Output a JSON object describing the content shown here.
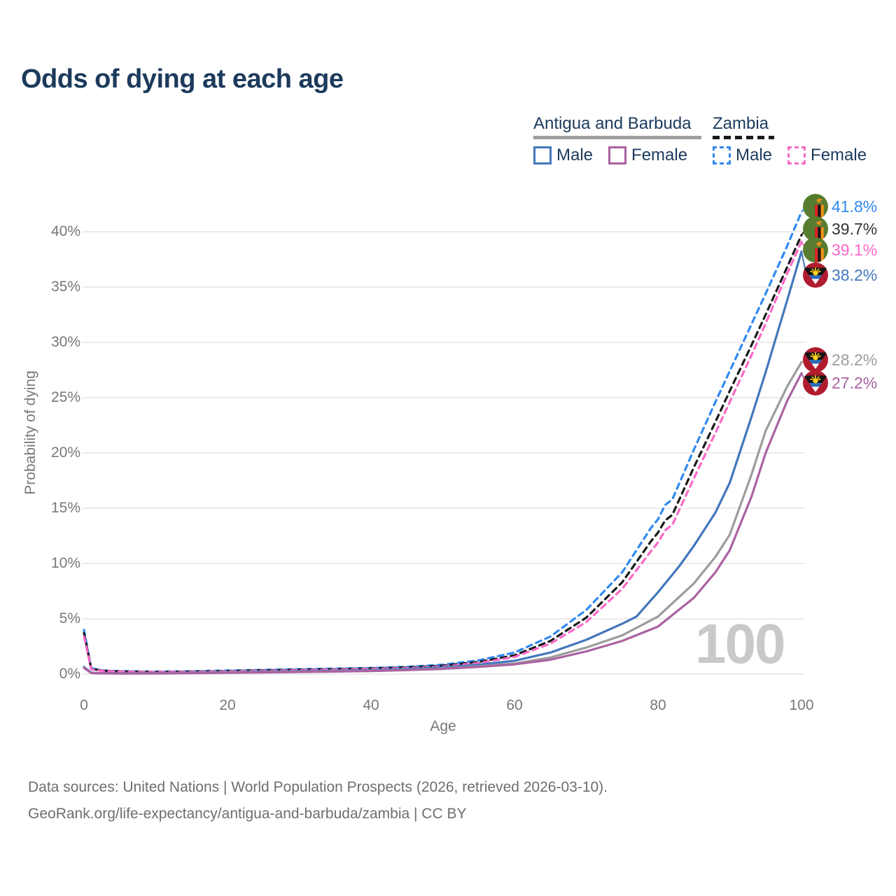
{
  "title": "Odds of dying at each age",
  "legend": {
    "groups": [
      {
        "label": "Antigua and Barbuda",
        "line_style": "solid",
        "underline_color": "#9e9e9e",
        "items": [
          {
            "label": "Male",
            "color": "#4377bc"
          },
          {
            "label": "Female",
            "color": "#aa62a2"
          }
        ]
      },
      {
        "label": "Zambia",
        "line_style": "dashed",
        "underline_color": "#1a1a1a",
        "items": [
          {
            "label": "Male",
            "color": "#3089f2"
          },
          {
            "label": "Female",
            "color": "#fb68c8"
          }
        ]
      }
    ]
  },
  "chart_data": {
    "type": "line",
    "title": "Odds of dying at each age",
    "x_axis": {
      "label": "Age",
      "tick_values": [
        0,
        20,
        40,
        60,
        80,
        100
      ],
      "range": [
        0,
        100
      ]
    },
    "y_axis": {
      "label": "Probability of dying",
      "tick_labels": [
        "0%",
        "5%",
        "10%",
        "15%",
        "20%",
        "25%",
        "30%",
        "35%",
        "40%"
      ],
      "tick_values": [
        0,
        5,
        10,
        15,
        20,
        25,
        30,
        35,
        40
      ],
      "range": [
        0,
        43.5
      ]
    },
    "grid": true,
    "watermark": "100",
    "series": [
      {
        "name": "Zambia Male",
        "country": "Zambia",
        "sex": "Male",
        "flag": "zambia",
        "color": "#3089f2",
        "dash": "dashed",
        "end_label": "41.8%",
        "end_value": 41.8,
        "points": [
          [
            0,
            4.0
          ],
          [
            1,
            0.55
          ],
          [
            2,
            0.4
          ],
          [
            3,
            0.32
          ],
          [
            5,
            0.27
          ],
          [
            10,
            0.22
          ],
          [
            15,
            0.26
          ],
          [
            20,
            0.32
          ],
          [
            25,
            0.38
          ],
          [
            30,
            0.44
          ],
          [
            35,
            0.5
          ],
          [
            40,
            0.56
          ],
          [
            45,
            0.66
          ],
          [
            50,
            0.85
          ],
          [
            55,
            1.25
          ],
          [
            60,
            1.95
          ],
          [
            65,
            3.4
          ],
          [
            70,
            5.8
          ],
          [
            75,
            9.2
          ],
          [
            79,
            13.2
          ],
          [
            80,
            14.0
          ],
          [
            81,
            15.3
          ],
          [
            82,
            15.8
          ],
          [
            85,
            20.3
          ],
          [
            88,
            24.6
          ],
          [
            90,
            27.4
          ],
          [
            93,
            31.6
          ],
          [
            95,
            34.4
          ],
          [
            98,
            38.7
          ],
          [
            100,
            41.8
          ]
        ]
      },
      {
        "name": "Zambia",
        "country": "Zambia",
        "sex": "Both",
        "flag": "zambia",
        "color": "#1a1a1a",
        "dash": "dashed",
        "end_label": "39.7%",
        "end_value": 39.7,
        "points": [
          [
            0,
            3.7
          ],
          [
            1,
            0.5
          ],
          [
            2,
            0.36
          ],
          [
            3,
            0.29
          ],
          [
            5,
            0.24
          ],
          [
            10,
            0.19
          ],
          [
            15,
            0.23
          ],
          [
            20,
            0.28
          ],
          [
            25,
            0.34
          ],
          [
            30,
            0.4
          ],
          [
            35,
            0.45
          ],
          [
            40,
            0.51
          ],
          [
            45,
            0.6
          ],
          [
            50,
            0.76
          ],
          [
            55,
            1.1
          ],
          [
            60,
            1.7
          ],
          [
            65,
            3.0
          ],
          [
            70,
            5.1
          ],
          [
            75,
            8.3
          ],
          [
            79,
            12.0
          ],
          [
            80,
            12.8
          ],
          [
            81,
            13.9
          ],
          [
            82,
            14.4
          ],
          [
            85,
            18.7
          ],
          [
            88,
            22.8
          ],
          [
            90,
            25.6
          ],
          [
            93,
            29.7
          ],
          [
            95,
            32.5
          ],
          [
            98,
            36.8
          ],
          [
            100,
            39.7
          ]
        ]
      },
      {
        "name": "Zambia Female",
        "country": "Zambia",
        "sex": "Female",
        "flag": "zambia",
        "color": "#fb68c8",
        "dash": "dashed",
        "end_label": "39.1%",
        "end_value": 39.1,
        "points": [
          [
            0,
            3.4
          ],
          [
            1,
            0.45
          ],
          [
            2,
            0.33
          ],
          [
            3,
            0.27
          ],
          [
            5,
            0.22
          ],
          [
            10,
            0.17
          ],
          [
            15,
            0.2
          ],
          [
            20,
            0.25
          ],
          [
            25,
            0.3
          ],
          [
            30,
            0.36
          ],
          [
            35,
            0.41
          ],
          [
            40,
            0.46
          ],
          [
            45,
            0.54
          ],
          [
            50,
            0.68
          ],
          [
            55,
            1.0
          ],
          [
            60,
            1.55
          ],
          [
            65,
            2.75
          ],
          [
            70,
            4.7
          ],
          [
            75,
            7.7
          ],
          [
            79,
            11.1
          ],
          [
            80,
            11.9
          ],
          [
            81,
            13.0
          ],
          [
            82,
            13.5
          ],
          [
            85,
            17.7
          ],
          [
            88,
            21.8
          ],
          [
            90,
            24.6
          ],
          [
            93,
            28.8
          ],
          [
            95,
            31.7
          ],
          [
            98,
            36.2
          ],
          [
            100,
            39.1
          ]
        ]
      },
      {
        "name": "Antigua and Barbuda Male",
        "country": "Antigua and Barbuda",
        "sex": "Male",
        "flag": "antigua-and-barbuda",
        "color": "#4377bc",
        "dash": "solid",
        "end_label": "38.2%",
        "end_value": 38.2,
        "points": [
          [
            0,
            0.65
          ],
          [
            1,
            0.13
          ],
          [
            2,
            0.09
          ],
          [
            5,
            0.07
          ],
          [
            10,
            0.08
          ],
          [
            15,
            0.13
          ],
          [
            20,
            0.18
          ],
          [
            25,
            0.22
          ],
          [
            30,
            0.27
          ],
          [
            35,
            0.31
          ],
          [
            40,
            0.36
          ],
          [
            45,
            0.46
          ],
          [
            50,
            0.6
          ],
          [
            55,
            0.85
          ],
          [
            60,
            1.2
          ],
          [
            65,
            1.95
          ],
          [
            70,
            3.1
          ],
          [
            75,
            4.55
          ],
          [
            77,
            5.2
          ],
          [
            80,
            7.4
          ],
          [
            83,
            9.8
          ],
          [
            85,
            11.6
          ],
          [
            88,
            14.6
          ],
          [
            90,
            17.3
          ],
          [
            93,
            23.2
          ],
          [
            95,
            27.3
          ],
          [
            98,
            33.8
          ],
          [
            100,
            38.2
          ]
        ]
      },
      {
        "name": "Antigua and Barbuda",
        "country": "Antigua and Barbuda",
        "sex": "Both",
        "flag": "antigua-and-barbuda",
        "color": "#9c9c9c",
        "dash": "solid",
        "end_label": "28.2%",
        "end_value": 28.2,
        "points": [
          [
            0,
            0.6
          ],
          [
            1,
            0.11
          ],
          [
            2,
            0.08
          ],
          [
            5,
            0.06
          ],
          [
            10,
            0.07
          ],
          [
            15,
            0.11
          ],
          [
            20,
            0.15
          ],
          [
            25,
            0.18
          ],
          [
            30,
            0.22
          ],
          [
            35,
            0.26
          ],
          [
            40,
            0.3
          ],
          [
            45,
            0.38
          ],
          [
            50,
            0.5
          ],
          [
            55,
            0.7
          ],
          [
            60,
            0.95
          ],
          [
            65,
            1.5
          ],
          [
            70,
            2.4
          ],
          [
            75,
            3.5
          ],
          [
            80,
            5.2
          ],
          [
            85,
            8.2
          ],
          [
            88,
            10.6
          ],
          [
            90,
            12.6
          ],
          [
            93,
            18.0
          ],
          [
            95,
            22.0
          ],
          [
            98,
            26.0
          ],
          [
            100,
            28.2
          ]
        ]
      },
      {
        "name": "Antigua and Barbuda Female",
        "country": "Antigua and Barbuda",
        "sex": "Female",
        "flag": "antigua-and-barbuda",
        "color": "#aa62a2",
        "dash": "solid",
        "end_label": "27.2%",
        "end_value": 27.2,
        "points": [
          [
            0,
            0.55
          ],
          [
            1,
            0.1
          ],
          [
            2,
            0.07
          ],
          [
            5,
            0.05
          ],
          [
            10,
            0.06
          ],
          [
            15,
            0.09
          ],
          [
            20,
            0.12
          ],
          [
            25,
            0.15
          ],
          [
            30,
            0.19
          ],
          [
            35,
            0.23
          ],
          [
            40,
            0.28
          ],
          [
            45,
            0.36
          ],
          [
            50,
            0.47
          ],
          [
            55,
            0.65
          ],
          [
            60,
            0.88
          ],
          [
            65,
            1.3
          ],
          [
            70,
            2.05
          ],
          [
            75,
            3.0
          ],
          [
            80,
            4.3
          ],
          [
            85,
            6.9
          ],
          [
            88,
            9.2
          ],
          [
            90,
            11.2
          ],
          [
            93,
            16.0
          ],
          [
            95,
            20.0
          ],
          [
            98,
            24.7
          ],
          [
            100,
            27.2
          ]
        ]
      }
    ]
  },
  "end_label_colors": [
    "#3089f2",
    "#333333",
    "#fb68c8",
    "#4377bc",
    "#9c9c9c",
    "#aa62a2"
  ],
  "footer": {
    "line1": "Data sources: United Nations | World Population Prospects (2026, retrieved 2026-03-10).",
    "line2": "GeoRank.org/life-expectancy/antigua-and-barbuda/zambia | CC BY"
  }
}
